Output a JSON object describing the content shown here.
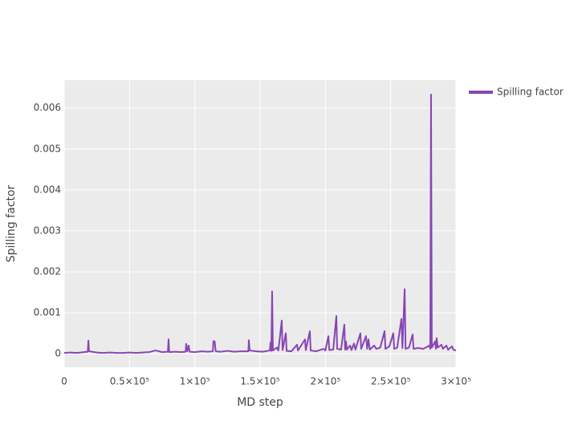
{
  "chart_data": {
    "type": "line",
    "x_label": "MD step",
    "y_label": "Spilling factor",
    "x": [
      0,
      5000,
      10000,
      15000,
      18000,
      18500,
      19000,
      25000,
      30000,
      35000,
      40000,
      45000,
      50000,
      55000,
      60000,
      65000,
      70000,
      75000,
      79400,
      79900,
      80400,
      85000,
      90000,
      93000,
      93400,
      94200,
      95300,
      96000,
      100000,
      105000,
      110000,
      113800,
      114300,
      115200,
      116000,
      120000,
      125000,
      130000,
      135000,
      141000,
      141400,
      142000,
      147000,
      152000,
      157500,
      158000,
      158600,
      159200,
      159800,
      162900,
      164000,
      166600,
      167200,
      169700,
      170300,
      174000,
      178300,
      179000,
      184400,
      185000,
      188100,
      188700,
      193000,
      198600,
      200000,
      202300,
      203000,
      206000,
      208400,
      209000,
      212000,
      214500,
      215100,
      215800,
      216500,
      218900,
      220000,
      221900,
      223000,
      226800,
      227400,
      231100,
      232000,
      233000,
      234000,
      237300,
      239000,
      242000,
      245300,
      246000,
      249000,
      252000,
      252700,
      255000,
      258200,
      259000,
      260700,
      261400,
      264000,
      266800,
      267500,
      271000,
      275000,
      279700,
      280300,
      280900,
      281500,
      284000,
      284600,
      285200,
      286000,
      288900,
      290000,
      292600,
      294000,
      296900,
      298000,
      300000
    ],
    "series": [
      {
        "name": "Spilling factor",
        "color": "#8746b4",
        "values": [
          2e-05,
          3e-05,
          2e-05,
          4e-05,
          5e-05,
          0.00032,
          6e-05,
          3e-05,
          2e-05,
          3e-05,
          2e-05,
          2e-05,
          3e-05,
          2e-05,
          3e-05,
          4e-05,
          8e-05,
          4e-05,
          5e-05,
          0.00035,
          4e-05,
          5e-05,
          4e-05,
          5e-05,
          0.00024,
          6e-05,
          0.0002,
          5e-05,
          4e-05,
          6e-05,
          5e-05,
          6e-05,
          0.00031,
          0.0003,
          6e-05,
          5e-05,
          7e-05,
          5e-05,
          6e-05,
          6e-05,
          0.00033,
          8e-05,
          6e-05,
          5e-05,
          8e-05,
          0.00028,
          7e-05,
          0.00152,
          8e-05,
          0.00015,
          8e-05,
          0.00081,
          9e-05,
          0.0005,
          7e-05,
          6e-05,
          0.00022,
          8e-05,
          0.00035,
          9e-05,
          0.00055,
          8e-05,
          6e-05,
          0.00012,
          8e-05,
          0.00043,
          9e-05,
          0.0001,
          0.00092,
          0.00012,
          0.0001,
          0.00071,
          0.0001,
          0.0003,
          0.0001,
          0.0002,
          9e-05,
          0.00025,
          0.0001,
          0.0005,
          0.00012,
          0.00043,
          0.00012,
          0.00035,
          0.0001,
          0.0002,
          0.00012,
          0.00015,
          0.00055,
          0.00012,
          0.00018,
          0.0005,
          0.00012,
          0.00015,
          0.00085,
          0.00014,
          0.00158,
          0.00012,
          0.00015,
          0.00047,
          0.00012,
          0.00014,
          0.00012,
          0.0002,
          0.00012,
          0.00633,
          0.00015,
          0.0003,
          0.00012,
          0.00038,
          0.00015,
          0.00022,
          0.00012,
          0.0002,
          0.0001,
          0.00018,
          0.0001,
          8e-05
        ]
      }
    ],
    "xlim": [
      0,
      300000
    ],
    "xticks": [
      0,
      {
        "value": 50000,
        "label": "0.5×10⁵"
      },
      {
        "value": 100000,
        "label": "1×10⁵"
      },
      {
        "value": 150000,
        "label": "1.5×10⁵"
      },
      {
        "value": 200000,
        "label": "2×10⁵"
      },
      {
        "value": 250000,
        "label": "2.5×10⁵"
      },
      {
        "value": 300000,
        "label": "3×10⁵"
      }
    ],
    "ylim": [
      -0.00033,
      0.00668
    ],
    "yticks": [
      0,
      0.001,
      0.002,
      0.003,
      0.004,
      0.005,
      0.006
    ],
    "grid": true,
    "legend": "right"
  }
}
